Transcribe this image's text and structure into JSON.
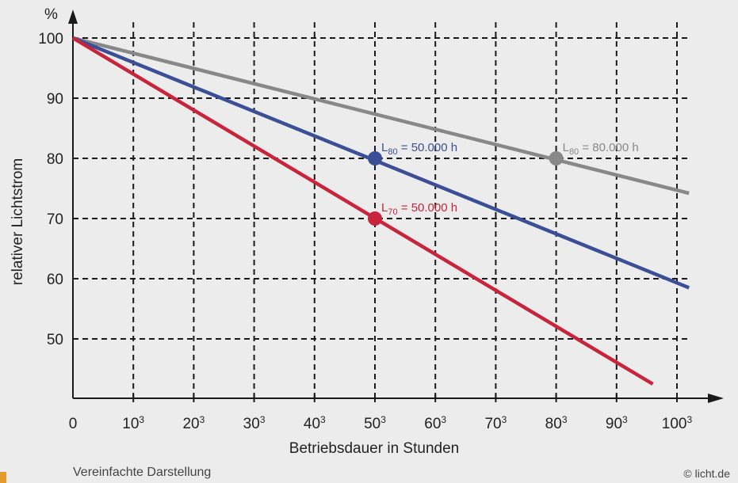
{
  "chart_data": {
    "type": "line",
    "ylabel": "relativer Lichtstrom",
    "yunit": "%",
    "xlabel": "Betriebsdauer in Stunden",
    "ylim": [
      40,
      100
    ],
    "yticks": [
      100,
      90,
      80,
      70,
      60,
      50
    ],
    "xticks": [
      "0",
      "10³",
      "20³",
      "30³",
      "40³",
      "50³",
      "60³",
      "70³",
      "80³",
      "90³",
      "100³"
    ],
    "grid": true,
    "series": [
      {
        "color": "#888888",
        "x": [
          0,
          102
        ],
        "y": [
          100,
          74.2
        ]
      },
      {
        "color": "#3a4f95",
        "x": [
          0,
          102
        ],
        "y": [
          100,
          58.5
        ]
      },
      {
        "color": "#c8243c",
        "x": [
          0,
          96
        ],
        "y": [
          100,
          42.5
        ]
      }
    ],
    "markers": [
      {
        "x": 50,
        "y": 80,
        "color": "#3a4f95",
        "label_main": "L",
        "label_sub": "80",
        "label_rest": " = 50.000 h"
      },
      {
        "x": 80,
        "y": 80,
        "color": "#888888",
        "label_main": "L",
        "label_sub": "80",
        "label_rest": " = 80.000 h"
      },
      {
        "x": 50,
        "y": 70,
        "color": "#c8243c",
        "label_main": "L",
        "label_sub": "70",
        "label_rest": " = 50.000 h"
      }
    ]
  },
  "footer": {
    "note": "Vereinfachte Darstellung",
    "copyright": "© licht.de"
  }
}
